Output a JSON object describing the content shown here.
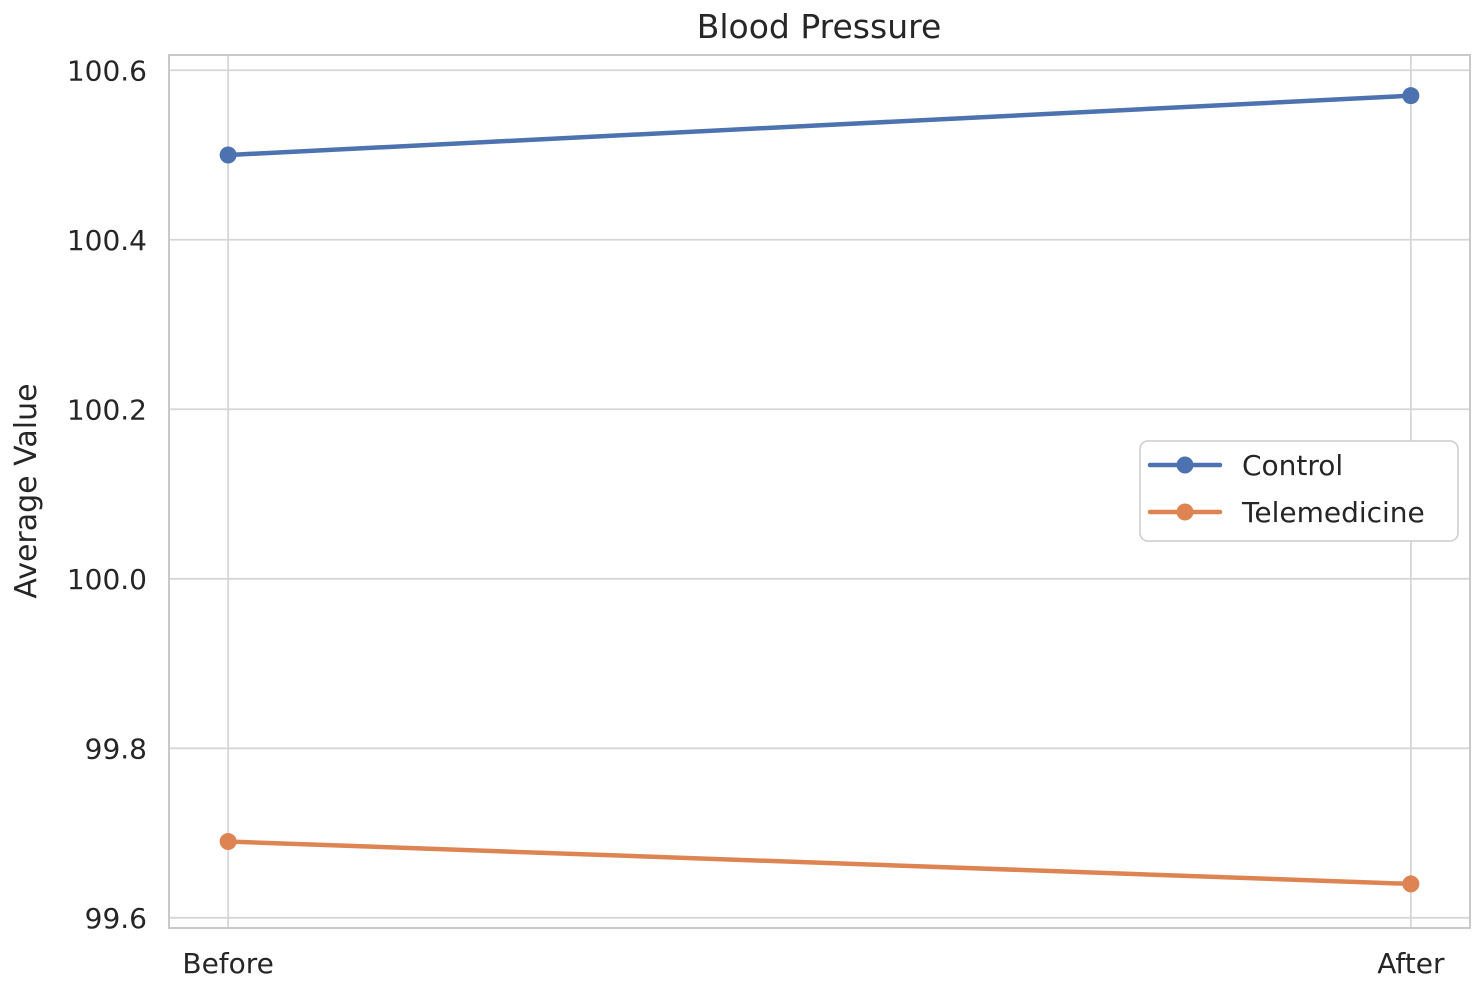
{
  "figure": {
    "title": "Blood Pressure",
    "ylabel": "Average Value"
  },
  "chart_data": {
    "type": "line",
    "title": "Blood Pressure",
    "xlabel": "",
    "ylabel": "Average Value",
    "categories": [
      "Before",
      "After"
    ],
    "series": [
      {
        "name": "Control",
        "color": "#4C72B0",
        "values": [
          100.5,
          100.57
        ]
      },
      {
        "name": "Telemedicine",
        "color": "#DD8452",
        "values": [
          99.69,
          99.64
        ]
      }
    ],
    "yticks": [
      99.6,
      99.8,
      100.0,
      100.2,
      100.4,
      100.6
    ],
    "ylim": [
      99.588,
      100.618
    ],
    "xlim": [
      -0.05,
      1.05
    ],
    "grid": true,
    "legend_position": "center right",
    "legend_entries": [
      "Control",
      "Telemedicine"
    ],
    "colors": {
      "background": "#ffffff",
      "grid": "#d6d6d6",
      "spine": "#c9c9c9",
      "text": "#262626",
      "legend_border": "#cccccc"
    }
  }
}
